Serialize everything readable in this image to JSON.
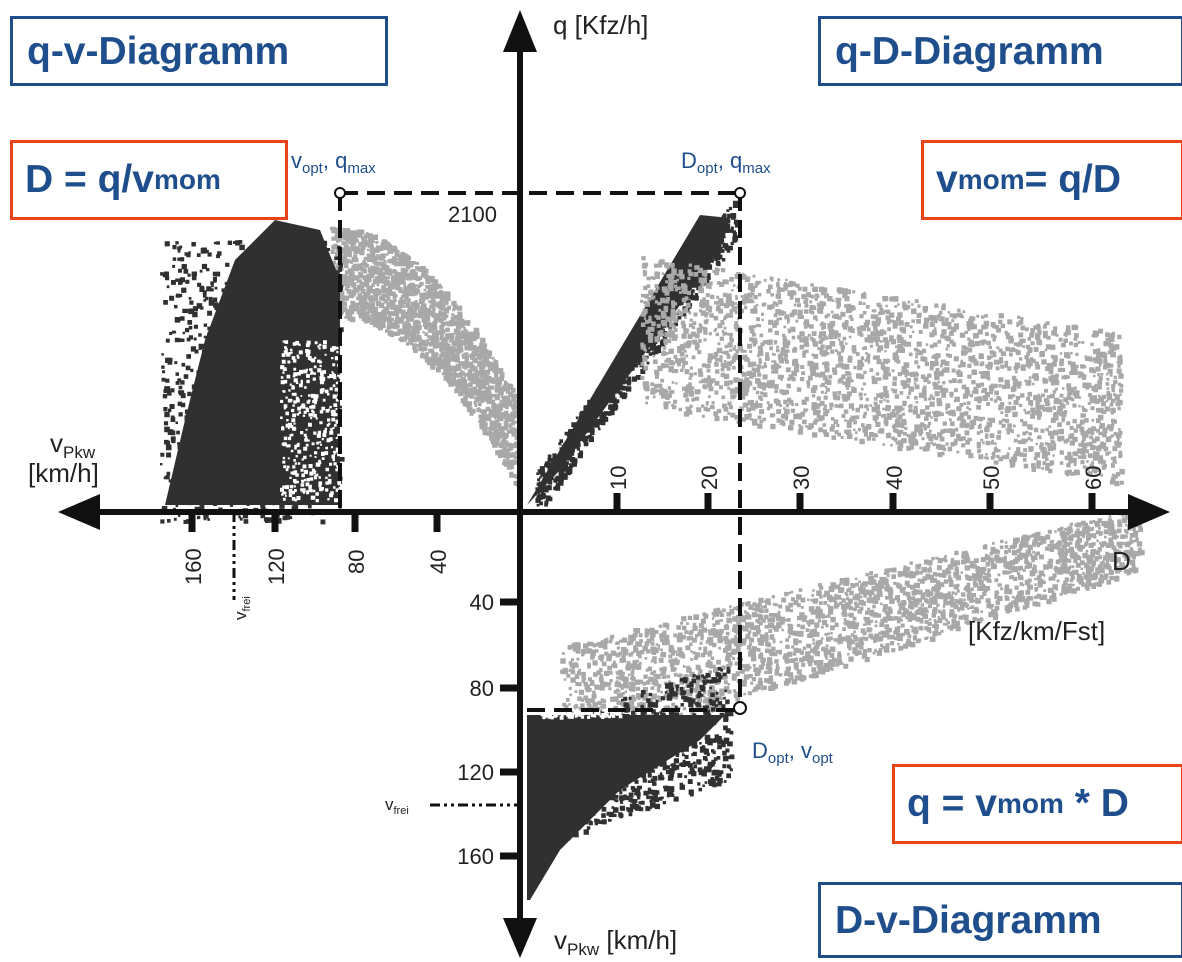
{
  "titles": {
    "qv": "q-v-Diagramm",
    "qD": "q-D-Diagramm",
    "Dv": "D-v-Diagramm"
  },
  "formulas": {
    "D_lhs": "D = q/v",
    "D_sub": "mom",
    "v_v": "v",
    "v_sub": "mom",
    "v_rhs": " = q/D",
    "q_lhs": "q = v",
    "q_sub": "mom",
    "q_rhs": "* D"
  },
  "annotations": {
    "vopt_qmax": {
      "a": "v",
      "a_sub": "opt",
      "sep": ", ",
      "b": "q",
      "b_sub": "max"
    },
    "Dopt_qmax": {
      "a": "D",
      "a_sub": "opt",
      "sep": ", ",
      "b": "q",
      "b_sub": "max"
    },
    "Dopt_vopt": {
      "a": "D",
      "a_sub": "opt",
      "sep": ", ",
      "b": "v",
      "b_sub": "opt"
    },
    "qmax_value": "2100",
    "vfrei": "v",
    "vfrei_sub": "frei"
  },
  "axes": {
    "q_label": "q [Kfz/h]",
    "v_left_label": "v",
    "v_left_sub": "Pkw",
    "v_left_unit": "[km/h]",
    "v_bottom_label": "v",
    "v_bottom_sub": "Pkw",
    "v_bottom_unit": "[km/h]",
    "D_label": "D",
    "D_unit": "[Kfz/km/Fst]",
    "D_ticks": [
      "10",
      "20",
      "30",
      "40",
      "50",
      "60"
    ],
    "v_left_ticks": [
      "160",
      "120",
      "80",
      "40"
    ],
    "v_down_ticks": [
      "40",
      "80",
      "120",
      "160"
    ]
  },
  "colors": {
    "title_blue": "#1f4e8c",
    "formula_border": "#e8411c",
    "congested_points": "#303030",
    "free_flow_points": "#a8a8a8"
  }
}
